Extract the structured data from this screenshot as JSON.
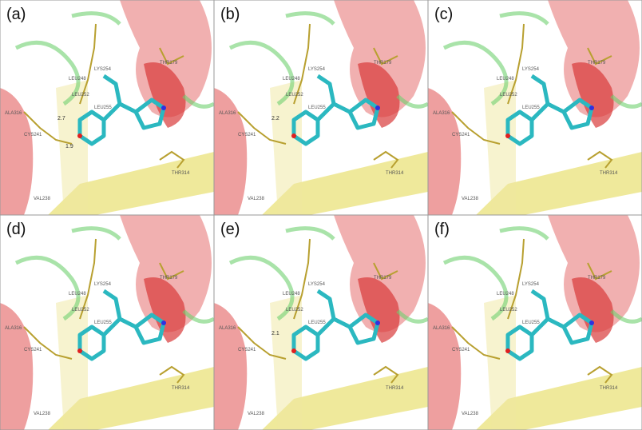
{
  "panels": [
    {
      "label": "(a)",
      "distances": [
        2.7,
        1.9
      ]
    },
    {
      "label": "(b)",
      "distances": [
        2.2
      ]
    },
    {
      "label": "(c)",
      "distances": []
    },
    {
      "label": "(d)",
      "distances": []
    },
    {
      "label": "(e)",
      "distances": [
        2.1
      ]
    },
    {
      "label": "(f)",
      "distances": []
    }
  ],
  "residues": [
    "THR179",
    "LYS254",
    "LEU248",
    "LEU252",
    "LEU255",
    "ALA316",
    "CYS241",
    "THR314",
    "VAL238"
  ]
}
